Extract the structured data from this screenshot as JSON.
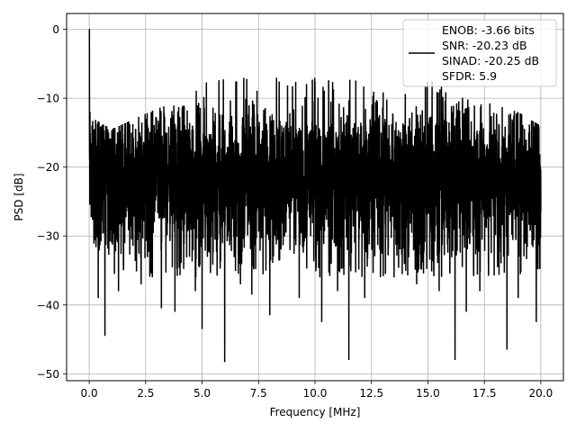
{
  "chart_data": {
    "type": "line",
    "title": "",
    "xlabel": "Frequency [MHz]",
    "ylabel": "PSD [dB]",
    "xlim": [
      -1.0,
      21.0
    ],
    "ylim": [
      -51.0,
      2.3
    ],
    "xticks": [
      0.0,
      2.5,
      5.0,
      7.5,
      10.0,
      12.5,
      15.0,
      17.5,
      20.0
    ],
    "xtick_labels": [
      "0.0",
      "2.5",
      "5.0",
      "7.5",
      "10.0",
      "12.5",
      "15.0",
      "17.5",
      "20.0"
    ],
    "yticks": [
      0,
      -10,
      -20,
      -30,
      -40,
      -50
    ],
    "ytick_labels": [
      "0",
      "−10",
      "−20",
      "−30",
      "−40",
      "−50"
    ],
    "grid": true,
    "legend_position": "top-right",
    "series": [
      {
        "name": "ENOB: -3.66 bits\nSNR: -20.23 dB\nSINAD: -20.25 dB\nSFDR: 5.9",
        "color": "#000000",
        "legend_lines": [
          "ENOB: -3.66 bits",
          "SNR: -20.23 dB",
          "SINAD: -20.25 dB",
          "SFDR: 5.9"
        ],
        "x_range": [
          0.0,
          20.0
        ],
        "point_count": 4097,
        "peak": {
          "x": 0.005,
          "y": 0.0
        },
        "envelope_max": [
          [
            0.0,
            0.0
          ],
          [
            0.05,
            -14.0
          ],
          [
            0.2,
            -13.0
          ],
          [
            1.0,
            -14.5
          ],
          [
            2.0,
            -13.0
          ],
          [
            3.0,
            -11.5
          ],
          [
            3.5,
            -11.0
          ],
          [
            4.0,
            -10.0
          ],
          [
            5.0,
            -8.0
          ],
          [
            5.6,
            -6.5
          ],
          [
            6.0,
            -7.0
          ],
          [
            7.5,
            -7.0
          ],
          [
            9.0,
            -6.5
          ],
          [
            10.0,
            -7.0
          ],
          [
            11.0,
            -7.0
          ],
          [
            12.0,
            -7.0
          ],
          [
            12.5,
            -8.5
          ],
          [
            14.0,
            -8.0
          ],
          [
            15.0,
            -7.0
          ],
          [
            16.0,
            -9.0
          ],
          [
            17.0,
            -10.0
          ],
          [
            18.0,
            -11.0
          ],
          [
            19.0,
            -12.0
          ],
          [
            20.0,
            -14.0
          ]
        ],
        "median": -21.0,
        "typical_floor": -33.0,
        "notable_dips": [
          [
            0.4,
            -39.0
          ],
          [
            0.7,
            -44.5
          ],
          [
            1.3,
            -38.0
          ],
          [
            2.3,
            -37.0
          ],
          [
            2.8,
            -36.0
          ],
          [
            3.2,
            -40.5
          ],
          [
            3.8,
            -41.0
          ],
          [
            4.7,
            -38.0
          ],
          [
            5.0,
            -43.5
          ],
          [
            6.0,
            -48.3
          ],
          [
            6.7,
            -37.0
          ],
          [
            7.2,
            -38.5
          ],
          [
            8.0,
            -41.5
          ],
          [
            9.3,
            -39.0
          ],
          [
            10.3,
            -42.5
          ],
          [
            11.0,
            -38.0
          ],
          [
            11.5,
            -48.0
          ],
          [
            12.2,
            -39.0
          ],
          [
            13.5,
            -36.0
          ],
          [
            14.5,
            -37.0
          ],
          [
            15.5,
            -38.0
          ],
          [
            16.2,
            -48.0
          ],
          [
            16.7,
            -41.0
          ],
          [
            17.3,
            -38.0
          ],
          [
            18.5,
            -46.5
          ],
          [
            19.0,
            -39.0
          ],
          [
            19.8,
            -42.5
          ]
        ]
      }
    ]
  }
}
